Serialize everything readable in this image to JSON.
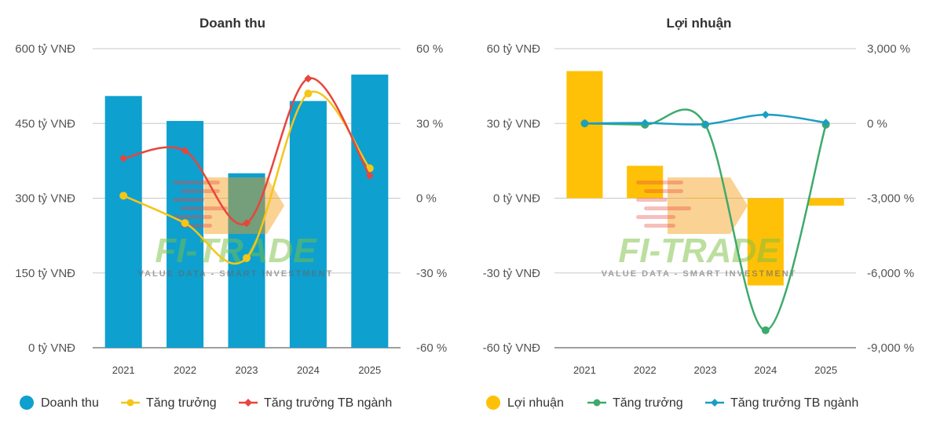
{
  "watermark": {
    "brand": "FI-TRADE",
    "tagline": "VALUE DATA - SMART INVESTMENT"
  },
  "chart_data": [
    {
      "type": "bar",
      "title": "Doanh thu",
      "categories": [
        "2021",
        "2022",
        "2023",
        "2024",
        "2025"
      ],
      "bar_series": {
        "name": "Doanh thu",
        "color": "#0ea0cf",
        "values": [
          505,
          455,
          350,
          495,
          548
        ]
      },
      "line_series": [
        {
          "name": "Tăng trưởng",
          "color": "#f5c518",
          "marker": "circle",
          "values": [
            1,
            -10,
            -24,
            42,
            12
          ]
        },
        {
          "name": "Tăng trưởng TB ngành",
          "color": "#e8453c",
          "marker": "diamond",
          "values": [
            16,
            19,
            -10,
            48,
            9
          ]
        }
      ],
      "left_axis": {
        "ylim": [
          0,
          600
        ],
        "ticks": [
          0,
          150,
          300,
          450,
          600
        ],
        "tick_labels": [
          "0 tỷ VNĐ",
          "150 tỷ VNĐ",
          "300 tỷ VNĐ",
          "450 tỷ VNĐ",
          "600 tỷ VNĐ"
        ]
      },
      "right_axis": {
        "ylim": [
          -60,
          60
        ],
        "ticks": [
          -60,
          -30,
          0,
          30,
          60
        ],
        "tick_labels": [
          "-60 %",
          "-30 %",
          "0 %",
          "30 %",
          "60 %"
        ]
      },
      "legend": {
        "position": "bottom"
      }
    },
    {
      "type": "bar",
      "title": "Lợi nhuận",
      "categories": [
        "2021",
        "2022",
        "2023",
        "2024",
        "2025"
      ],
      "bar_series": {
        "name": "Lợi nhuận",
        "color": "#ffc107",
        "values": [
          51,
          13,
          0,
          -35,
          -3
        ]
      },
      "line_series": [
        {
          "name": "Tăng trưởng",
          "color": "#3daa6b",
          "marker": "circle",
          "values": [
            0,
            -50,
            -50,
            -8300,
            -50
          ]
        },
        {
          "name": "Tăng trưởng TB ngành",
          "color": "#1b9dc4",
          "marker": "diamond",
          "values": [
            0,
            20,
            -30,
            350,
            30
          ]
        }
      ],
      "left_axis": {
        "ylim": [
          -60,
          60
        ],
        "ticks": [
          -60,
          -30,
          0,
          30,
          60
        ],
        "tick_labels": [
          "-60 tỷ VNĐ",
          "-30 tỷ VNĐ",
          "0 tỷ VNĐ",
          "30 tỷ VNĐ",
          "60 tỷ VNĐ"
        ]
      },
      "right_axis": {
        "ylim": [
          -9000,
          3000
        ],
        "ticks": [
          -9000,
          -6000,
          -3000,
          0,
          3000
        ],
        "tick_labels": [
          "-9,000 %",
          "-6,000 %",
          "-3,000 %",
          "0 %",
          "3,000 %"
        ]
      },
      "legend": {
        "position": "bottom"
      }
    }
  ]
}
